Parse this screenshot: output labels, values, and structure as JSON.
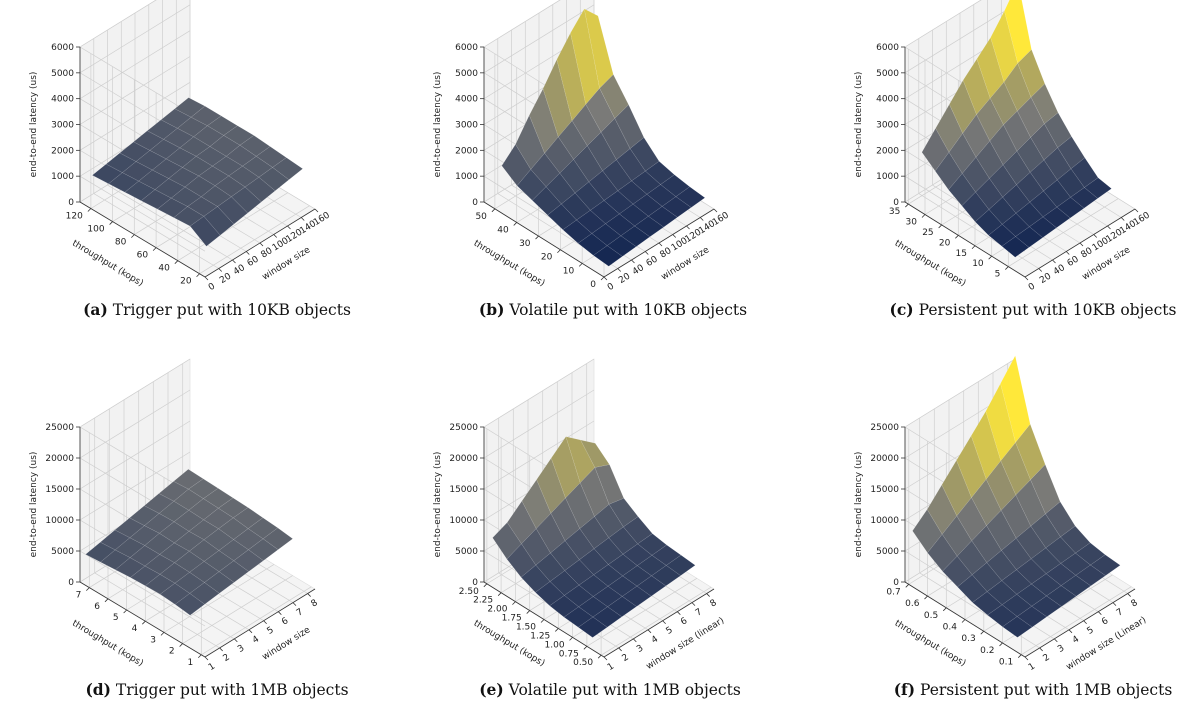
{
  "colors": {
    "low": "#0a1e4e",
    "mid": "#7b7b78",
    "high": "#ffe83a",
    "grid": "#cfcfcf",
    "pane": "#f7f7f7"
  },
  "chart_data": [
    {
      "type": "surface",
      "caption_label": "(a)",
      "caption_text": "Trigger put with 10KB objects",
      "xlabel": "window size",
      "ylabel": "throughput (kops)",
      "zlabel": "end-to-end latency (us)",
      "xticks": [
        "0",
        "20",
        "40",
        "60",
        "80",
        "100",
        "120",
        "140",
        "160"
      ],
      "xlim": [
        0,
        160
      ],
      "yticks": [
        "20",
        "40",
        "60",
        "80",
        "100",
        "120"
      ],
      "ylim": [
        15,
        130
      ],
      "zticks": [
        "0",
        "1000",
        "2000",
        "3000",
        "4000",
        "5000",
        "6000"
      ],
      "zlim": [
        0,
        6000
      ],
      "x": [
        10,
        30,
        50,
        70,
        90,
        110,
        130,
        150
      ],
      "y": [
        125,
        110,
        95,
        80,
        65,
        50,
        35,
        20
      ],
      "z": [
        [
          1000,
          1100,
          1200,
          1300,
          1400,
          1500,
          1600,
          1700
        ],
        [
          1050,
          1150,
          1250,
          1350,
          1450,
          1550,
          1650,
          1750
        ],
        [
          1100,
          1200,
          1300,
          1400,
          1500,
          1600,
          1700,
          1750
        ],
        [
          1150,
          1250,
          1350,
          1450,
          1550,
          1600,
          1700,
          1750
        ],
        [
          1200,
          1300,
          1400,
          1500,
          1550,
          1600,
          1700,
          1750
        ],
        [
          1250,
          1350,
          1400,
          1500,
          1550,
          1600,
          1650,
          1700
        ],
        [
          1300,
          1350,
          1400,
          1450,
          1500,
          1550,
          1600,
          1650
        ],
        [
          900,
          1000,
          1100,
          1200,
          1300,
          1400,
          1500,
          1600
        ]
      ]
    },
    {
      "type": "surface",
      "caption_label": "(b)",
      "caption_text": "Volatile put with 10KB objects",
      "xlabel": "window size",
      "ylabel": "throughput (kops)",
      "zlabel": "end-to-end latency (us)",
      "xticks": [
        "0",
        "20",
        "40",
        "60",
        "80",
        "100",
        "120",
        "140",
        "160"
      ],
      "xlim": [
        0,
        160
      ],
      "yticks": [
        "0",
        "10",
        "20",
        "30",
        "40",
        "50"
      ],
      "ylim": [
        0,
        55
      ],
      "zticks": [
        "0",
        "1000",
        "2000",
        "3000",
        "4000",
        "5000",
        "6000"
      ],
      "zlim": [
        0,
        6000
      ],
      "x": [
        10,
        30,
        50,
        70,
        90,
        110,
        130,
        150
      ],
      "y": [
        50,
        43,
        36,
        29,
        22,
        15,
        8,
        1
      ],
      "z": [
        [
          1500,
          2000,
          2800,
          3500,
          4300,
          5000,
          5600,
          5000
        ],
        [
          1100,
          1400,
          1700,
          2000,
          2300,
          2600,
          2900,
          3100
        ],
        [
          900,
          1100,
          1300,
          1500,
          1700,
          1900,
          2100,
          2300
        ],
        [
          700,
          800,
          900,
          1000,
          1100,
          1200,
          1300,
          1400
        ],
        [
          500,
          550,
          600,
          650,
          700,
          750,
          800,
          850
        ],
        [
          350,
          400,
          450,
          500,
          550,
          600,
          650,
          700
        ],
        [
          250,
          300,
          350,
          400,
          450,
          500,
          550,
          600
        ],
        [
          200,
          250,
          300,
          350,
          400,
          450,
          500,
          550
        ]
      ]
    },
    {
      "type": "surface",
      "caption_label": "(c)",
      "caption_text": "Persistent put with 10KB objects",
      "xlabel": "window size",
      "ylabel": "throughput (kops)",
      "zlabel": "end-to-end latency (us)",
      "xticks": [
        "0",
        "20",
        "40",
        "60",
        "80",
        "100",
        "120",
        "140",
        "160"
      ],
      "xlim": [
        0,
        160
      ],
      "yticks": [
        "5",
        "10",
        "15",
        "20",
        "25",
        "30",
        "35"
      ],
      "ylim": [
        0,
        36
      ],
      "zticks": [
        "0",
        "1000",
        "2000",
        "3000",
        "4000",
        "5000",
        "6000"
      ],
      "zlim": [
        0,
        6000
      ],
      "x": [
        10,
        30,
        50,
        70,
        90,
        110,
        130,
        150
      ],
      "y": [
        33,
        29,
        25,
        21,
        17,
        13,
        9,
        5
      ],
      "z": [
        [
          2000,
          2600,
          3200,
          3800,
          4300,
          4800,
          5500,
          6300
        ],
        [
          1600,
          2000,
          2400,
          2800,
          3100,
          3400,
          3800,
          4000
        ],
        [
          1200,
          1500,
          1800,
          2100,
          2400,
          2600,
          2800,
          3000
        ],
        [
          900,
          1100,
          1300,
          1500,
          1700,
          1900,
          2100,
          2200
        ],
        [
          600,
          750,
          900,
          1050,
          1200,
          1350,
          1500,
          1600
        ],
        [
          400,
          500,
          600,
          700,
          800,
          900,
          1000,
          1100
        ],
        [
          300,
          350,
          400,
          450,
          500,
          550,
          600,
          650
        ],
        [
          200,
          250,
          300,
          350,
          400,
          450,
          500,
          550
        ]
      ]
    },
    {
      "type": "surface",
      "caption_label": "(d)",
      "caption_text": "Trigger put with 1MB objects",
      "xlabel": "window size",
      "ylabel": "throughput (kops)",
      "zlabel": "end-to-end latency (us)",
      "xticks": [
        "1",
        "2",
        "3",
        "4",
        "5",
        "6",
        "7",
        "8"
      ],
      "xlim": [
        1,
        8.5
      ],
      "yticks": [
        "1",
        "2",
        "3",
        "4",
        "5",
        "6",
        "7"
      ],
      "ylim": [
        0.8,
        7.5
      ],
      "zticks": [
        "0",
        "5000",
        "10000",
        "15000",
        "20000",
        "25000"
      ],
      "zlim": [
        0,
        25000
      ],
      "x": [
        1,
        2,
        3,
        4,
        5,
        6,
        7,
        8
      ],
      "y": [
        7.2,
        6.4,
        5.6,
        4.8,
        4.0,
        3.2,
        2.4,
        1.6
      ],
      "z": [
        [
          5000,
          5500,
          6000,
          6500,
          7000,
          7500,
          8000,
          8500
        ],
        [
          5200,
          5700,
          6200,
          6700,
          7200,
          7700,
          8200,
          8400
        ],
        [
          5400,
          5900,
          6400,
          6900,
          7300,
          7700,
          8100,
          8300
        ],
        [
          5600,
          6000,
          6400,
          6800,
          7200,
          7600,
          8000,
          8200
        ],
        [
          5700,
          6100,
          6500,
          6900,
          7300,
          7600,
          7900,
          8100
        ],
        [
          5800,
          6100,
          6400,
          6700,
          7000,
          7300,
          7600,
          7900
        ],
        [
          5600,
          5900,
          6200,
          6500,
          6800,
          7100,
          7400,
          7700
        ],
        [
          5300,
          5600,
          5900,
          6200,
          6500,
          6800,
          7100,
          7400
        ]
      ]
    },
    {
      "type": "surface",
      "caption_label": "(e)",
      "caption_text": "Volatile put with 1MB objects",
      "xlabel": "window size (linear)",
      "ylabel": "throughput (kops)",
      "zlabel": "end-to-end latency (us)",
      "xticks": [
        "1",
        "2",
        "3",
        "4",
        "5",
        "6",
        "7",
        "8"
      ],
      "xlim": [
        1,
        8.5
      ],
      "yticks": [
        "0.50",
        "0.75",
        "1.00",
        "1.25",
        "1.50",
        "1.75",
        "2.00",
        "2.25",
        "2.50"
      ],
      "ylim": [
        0.45,
        2.55
      ],
      "zticks": [
        "0",
        "5000",
        "10000",
        "15000",
        "20000",
        "25000"
      ],
      "zlim": [
        0,
        25000
      ],
      "x": [
        1,
        2,
        3,
        4,
        5,
        6,
        7,
        8
      ],
      "y": [
        2.4,
        2.15,
        1.9,
        1.65,
        1.4,
        1.15,
        0.9,
        0.65
      ],
      "z": [
        [
          8000,
          9000,
          11000,
          13000,
          15000,
          17000,
          15000,
          13000
        ],
        [
          6000,
          7000,
          8000,
          9000,
          10000,
          11000,
          12000,
          11000
        ],
        [
          4500,
          5000,
          5500,
          6000,
          6500,
          7000,
          7500,
          7000
        ],
        [
          3500,
          3800,
          4100,
          4400,
          4700,
          5000,
          5300,
          5500
        ],
        [
          2800,
          3000,
          3200,
          3400,
          3600,
          3800,
          4000,
          4200
        ],
        [
          2400,
          2600,
          2800,
          3000,
          3200,
          3400,
          3600,
          3800
        ],
        [
          2200,
          2400,
          2600,
          2800,
          3000,
          3200,
          3400,
          3600
        ],
        [
          2000,
          2200,
          2400,
          2600,
          2800,
          3000,
          3200,
          3400
        ]
      ]
    },
    {
      "type": "surface",
      "caption_label": "(f)",
      "caption_text": "Persistent put with 1MB objects",
      "xlabel": "window size (Linear)",
      "ylabel": "throughput (kops)",
      "zlabel": "end-to-end latency (us)",
      "xticks": [
        "1",
        "2",
        "3",
        "4",
        "5",
        "6",
        "7",
        "8"
      ],
      "xlim": [
        1,
        8.5
      ],
      "yticks": [
        "0.1",
        "0.2",
        "0.3",
        "0.4",
        "0.5",
        "0.6",
        "0.7"
      ],
      "ylim": [
        0.08,
        0.72
      ],
      "zticks": [
        "0",
        "5000",
        "10000",
        "15000",
        "20000",
        "25000"
      ],
      "zlim": [
        0,
        25000
      ],
      "x": [
        1,
        2,
        3,
        4,
        5,
        6,
        7,
        8
      ],
      "y": [
        0.68,
        0.6,
        0.52,
        0.44,
        0.36,
        0.28,
        0.2,
        0.12
      ],
      "z": [
        [
          9000,
          11000,
          13500,
          16000,
          18500,
          21000,
          24000,
          27000
        ],
        [
          7000,
          8500,
          10000,
          11500,
          13000,
          14500,
          16000,
          17500
        ],
        [
          5500,
          6500,
          7500,
          8500,
          9500,
          10500,
          11500,
          12500
        ],
        [
          4500,
          5000,
          5500,
          6000,
          6500,
          7000,
          7500,
          8000
        ],
        [
          3500,
          3800,
          4100,
          4400,
          4700,
          5000,
          5300,
          5600
        ],
        [
          3000,
          3200,
          3400,
          3600,
          3800,
          4000,
          4200,
          4400
        ],
        [
          2600,
          2800,
          3000,
          3200,
          3400,
          3600,
          3800,
          4000
        ],
        [
          2400,
          2600,
          2800,
          3000,
          3200,
          3400,
          3600,
          3800
        ]
      ]
    }
  ]
}
